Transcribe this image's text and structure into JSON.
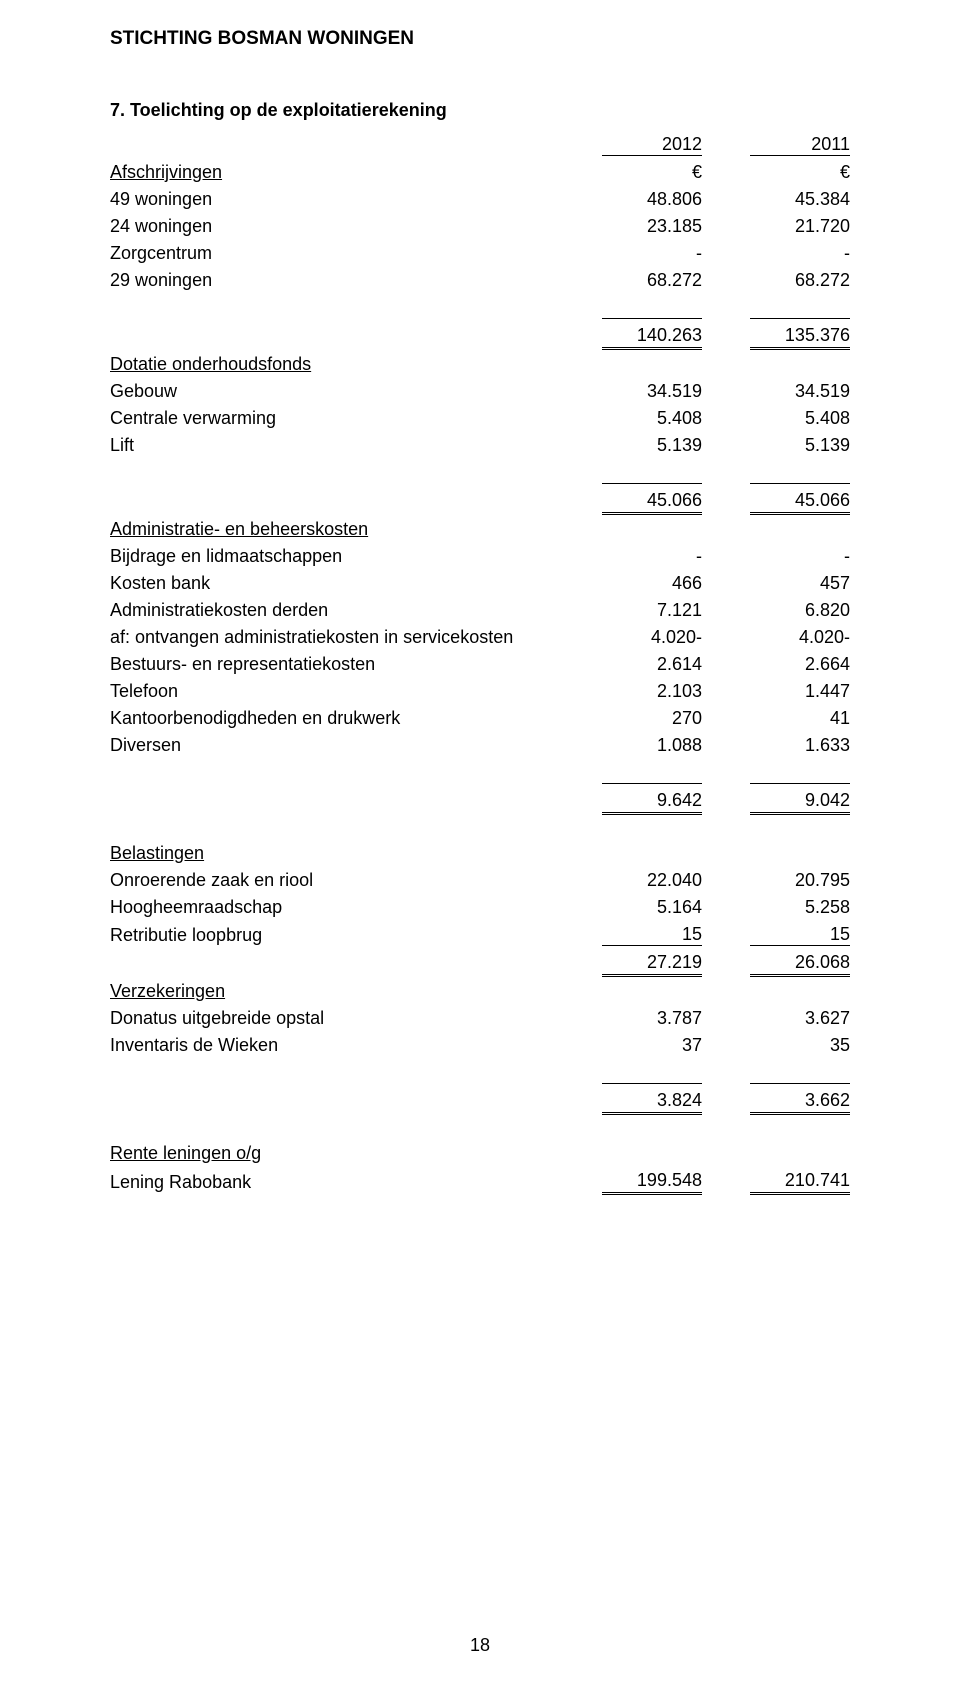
{
  "org_name": "STICHTING BOSMAN WONINGEN",
  "page_number": "18",
  "columns": {
    "year1": "2012",
    "year2": "2011",
    "currency": "€"
  },
  "section_title": "7. Toelichting op de exploitatierekening",
  "sections": [
    {
      "heading": "Afschrijvingen",
      "rows": [
        {
          "label": "49 woningen",
          "c1": "48.806",
          "c2": "45.384"
        },
        {
          "label": "24 woningen",
          "c1": "23.185",
          "c2": "21.720"
        },
        {
          "label": "Zorgcentrum",
          "c1": "-",
          "c2": "-"
        },
        {
          "label": "29 woningen",
          "c1": "68.272",
          "c2": "68.272"
        }
      ],
      "total": {
        "c1": "140.263",
        "c2": "135.376"
      }
    },
    {
      "heading": "Dotatie onderhoudsfonds",
      "rows": [
        {
          "label": "Gebouw",
          "c1": "34.519",
          "c2": "34.519"
        },
        {
          "label": "Centrale verwarming",
          "c1": "5.408",
          "c2": "5.408"
        },
        {
          "label": "Lift",
          "c1": "5.139",
          "c2": "5.139"
        }
      ],
      "total": {
        "c1": "45.066",
        "c2": "45.066"
      }
    },
    {
      "heading": "Administratie- en beheerskosten",
      "rows": [
        {
          "label": "Bijdrage en lidmaatschappen",
          "c1": "-",
          "c2": "-"
        },
        {
          "label": "Kosten bank",
          "c1": "466",
          "c2": "457"
        },
        {
          "label": "Administratiekosten derden",
          "c1": "7.121",
          "c2": "6.820"
        },
        {
          "label": "af: ontvangen administratiekosten in servicekosten",
          "c1": "4.020-",
          "c2": "4.020-"
        },
        {
          "label": "Bestuurs- en representatiekosten",
          "c1": "2.614",
          "c2": "2.664"
        },
        {
          "label": "Telefoon",
          "c1": "2.103",
          "c2": "1.447"
        },
        {
          "label": "Kantoorbenodigdheden en drukwerk",
          "c1": "270",
          "c2": "41"
        },
        {
          "label": "Diversen",
          "c1": "1.088",
          "c2": "1.633"
        }
      ],
      "total": {
        "c1": "9.642",
        "c2": "9.042"
      }
    },
    {
      "heading": "Belastingen",
      "rows": [
        {
          "label": "Onroerende zaak en riool",
          "c1": "22.040",
          "c2": "20.795"
        },
        {
          "label": "Hoogheemraadschap",
          "c1": "5.164",
          "c2": "5.258"
        },
        {
          "label": "Retributie loopbrug",
          "c1": "15",
          "c2": "15",
          "underline": true
        }
      ],
      "total_inline": {
        "c1": "27.219",
        "c2": "26.068"
      }
    },
    {
      "heading": "Verzekeringen",
      "rows": [
        {
          "label": "Donatus uitgebreide opstal",
          "c1": "3.787",
          "c2": "3.627"
        },
        {
          "label": "Inventaris de Wieken",
          "c1": "37",
          "c2": "35"
        }
      ],
      "total": {
        "c1": "3.824",
        "c2": "3.662"
      }
    },
    {
      "heading": "Rente leningen o/g",
      "rows": [
        {
          "label": "Lening Rabobank",
          "c1": "199.548",
          "c2": "210.741",
          "double": true
        }
      ]
    }
  ]
}
